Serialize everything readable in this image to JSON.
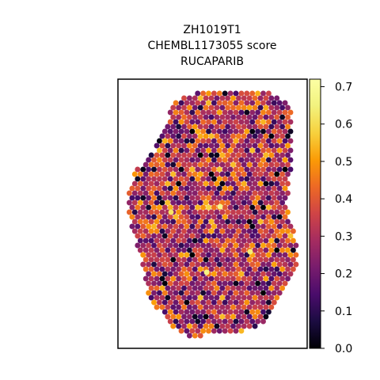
{
  "chart_data": {
    "type": "heatmap",
    "subtype": "spatial hexagonal spot map",
    "title_lines": [
      "ZH1019T1",
      "CHEMBL1173055 score",
      "RUCAPARIB"
    ],
    "colormap": "inferno",
    "color_range": [
      0.0,
      0.72
    ],
    "colorbar": {
      "position": "right",
      "ticks": [
        0.0,
        0.1,
        0.2,
        0.3,
        0.4,
        0.5,
        0.6,
        0.7
      ],
      "tick_labels": [
        "0.0",
        "0.1",
        "0.2",
        "0.3",
        "0.4",
        "0.5",
        "0.6",
        "0.7"
      ]
    },
    "axes_visible": false,
    "grid": false,
    "spot_value_distribution": {
      "typical_range": [
        0.15,
        0.45
      ],
      "typical_center": 0.3,
      "max_observed": 0.72,
      "min_observed": 0.0
    },
    "highlight_spots_value_approx": [
      {
        "value": 0.68,
        "note": "bright yellow spot, center-upper tissue"
      },
      {
        "value": 0.66,
        "note": "bright yellow spot, center-lower tissue"
      },
      {
        "value": 0.64,
        "note": "bright yellow spot, right-middle tissue"
      },
      {
        "value": 0.62,
        "note": "bright yellow spot, left-middle tissue"
      }
    ]
  }
}
